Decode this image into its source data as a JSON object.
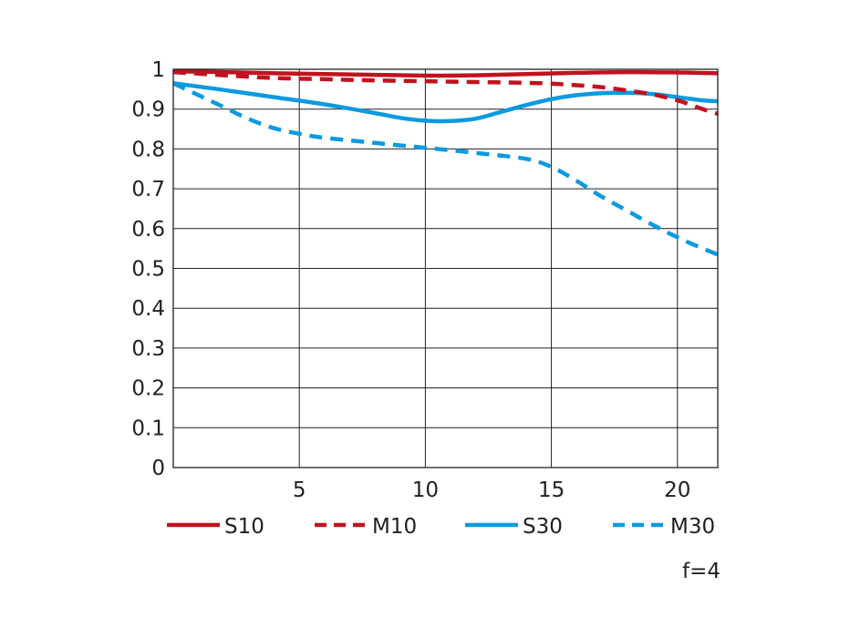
{
  "chart_data": {
    "type": "line",
    "title": "",
    "xlabel": "",
    "ylabel": "",
    "xlim": [
      0,
      21.6
    ],
    "ylim": [
      0,
      1
    ],
    "xticks": [
      5,
      10,
      15,
      20
    ],
    "yticks": [
      0,
      0.1,
      0.2,
      0.3,
      0.4,
      0.5,
      0.6,
      0.7,
      0.8,
      0.9,
      1
    ],
    "ytick_labels": [
      "0",
      "0.1",
      "0.2",
      "0.3",
      "0.4",
      "0.5",
      "0.6",
      "0.7",
      "0.8",
      "0.9",
      "1"
    ],
    "xtick_labels": [
      "5",
      "10",
      "15",
      "20"
    ],
    "grid": true,
    "legend_position": "bottom",
    "annotation": "f=4",
    "series": [
      {
        "name": "S10",
        "color": "#c1121f",
        "dash": "solid",
        "x": [
          0,
          2,
          4,
          6,
          8,
          10,
          11,
          12,
          14,
          16,
          18,
          20,
          21.6
        ],
        "y": [
          0.995,
          0.993,
          0.99,
          0.988,
          0.986,
          0.984,
          0.984,
          0.985,
          0.988,
          0.991,
          0.993,
          0.992,
          0.99
        ]
      },
      {
        "name": "M10",
        "color": "#c1121f",
        "dash": "dashed",
        "x": [
          0,
          2,
          4,
          6,
          8,
          10,
          12,
          14,
          15,
          16,
          17,
          18,
          19,
          20,
          21,
          21.6
        ],
        "y": [
          0.993,
          0.985,
          0.978,
          0.975,
          0.972,
          0.97,
          0.968,
          0.966,
          0.964,
          0.96,
          0.955,
          0.947,
          0.937,
          0.922,
          0.9,
          0.888
        ]
      },
      {
        "name": "S30",
        "color": "#0a9ae0",
        "dash": "solid",
        "x": [
          0,
          2,
          4,
          6,
          8,
          9,
          10,
          11,
          12,
          13,
          14,
          15,
          16,
          17,
          18,
          19,
          20,
          21,
          21.6
        ],
        "y": [
          0.965,
          0.948,
          0.93,
          0.912,
          0.89,
          0.878,
          0.871,
          0.87,
          0.876,
          0.893,
          0.91,
          0.925,
          0.935,
          0.94,
          0.941,
          0.938,
          0.93,
          0.922,
          0.92
        ]
      },
      {
        "name": "M30",
        "color": "#0a9ae0",
        "dash": "dashed",
        "x": [
          0,
          1,
          2,
          3,
          4,
          5,
          6,
          8,
          10,
          12,
          14,
          15,
          16,
          17,
          18,
          19,
          20,
          21,
          21.6
        ],
        "y": [
          0.965,
          0.935,
          0.905,
          0.875,
          0.852,
          0.838,
          0.828,
          0.815,
          0.803,
          0.79,
          0.775,
          0.755,
          0.72,
          0.68,
          0.645,
          0.61,
          0.578,
          0.55,
          0.535
        ]
      }
    ]
  }
}
